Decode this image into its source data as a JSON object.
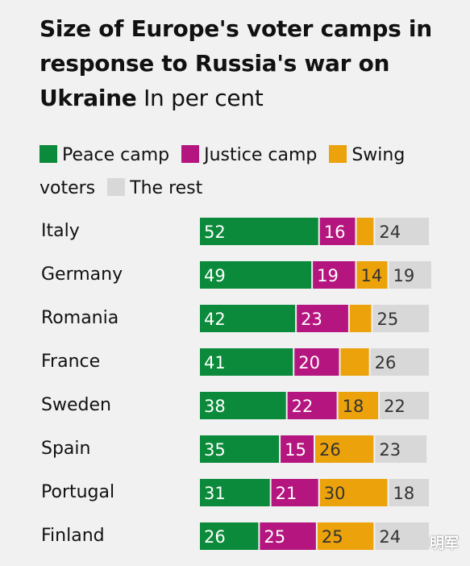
{
  "title": {
    "bold": "Size of Europe's voter camps in response to Russia's war on Ukraine",
    "subtitle": "In per cent"
  },
  "colors": {
    "peace": "#0a8a3a",
    "justice": "#b5157e",
    "swing": "#eca20b",
    "rest": "#d8d8d8"
  },
  "legend": [
    {
      "label": "Peace camp",
      "key": "peace"
    },
    {
      "label": "Justice camp",
      "key": "justice"
    },
    {
      "label": "Swing voters",
      "key": "swing"
    },
    {
      "label": "The rest",
      "key": "rest"
    }
  ],
  "chart_data": {
    "type": "bar",
    "orientation": "horizontal-stacked",
    "title": "Size of Europe's voter camps in response to Russia's war on Ukraine",
    "subtitle": "In per cent",
    "categories": [
      "Italy",
      "Germany",
      "Romania",
      "France",
      "Sweden",
      "Spain",
      "Portugal",
      "Finland"
    ],
    "series": [
      {
        "name": "Peace camp",
        "key": "peace",
        "values": [
          52,
          49,
          42,
          41,
          38,
          35,
          31,
          26
        ],
        "show_label": [
          true,
          true,
          true,
          true,
          true,
          true,
          true,
          true
        ]
      },
      {
        "name": "Justice camp",
        "key": "justice",
        "values": [
          16,
          19,
          23,
          20,
          22,
          15,
          21,
          25
        ],
        "show_label": [
          true,
          true,
          true,
          true,
          true,
          true,
          true,
          true
        ]
      },
      {
        "name": "Swing voters",
        "key": "swing",
        "values": [
          8,
          14,
          10,
          13,
          18,
          26,
          30,
          25
        ],
        "show_label": [
          false,
          true,
          false,
          false,
          true,
          true,
          true,
          true
        ]
      },
      {
        "name": "The rest",
        "key": "rest",
        "values": [
          24,
          19,
          25,
          26,
          22,
          23,
          18,
          24
        ],
        "show_label": [
          true,
          true,
          true,
          true,
          true,
          true,
          true,
          true
        ]
      }
    ],
    "xlim": [
      0,
      100
    ],
    "legend_position": "top",
    "grid": false
  },
  "watermark": "明军"
}
